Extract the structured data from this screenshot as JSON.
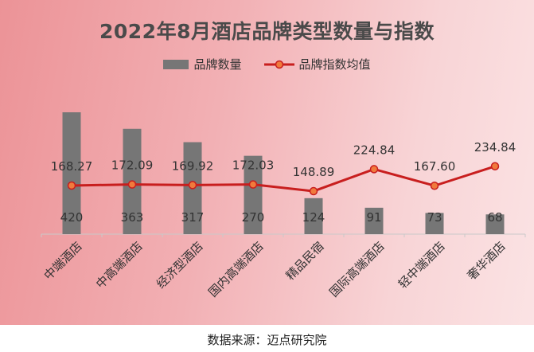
{
  "chart_data": {
    "type": "bar",
    "title": "2022年8月酒店品牌类型数量与指数",
    "categories": [
      "中端酒店",
      "中高端酒店",
      "经济型酒店",
      "国内高端酒店",
      "精品民宿",
      "国际高端酒店",
      "轻中端酒店",
      "奢华酒店"
    ],
    "series": [
      {
        "name": "品牌数量",
        "type": "bar",
        "values": [
          420,
          363,
          317,
          270,
          124,
          91,
          73,
          68
        ],
        "color": "#767676"
      },
      {
        "name": "品牌指数均值",
        "type": "line",
        "values": [
          168.27,
          172.09,
          169.92,
          172.03,
          148.89,
          224.84,
          167.6,
          234.84
        ],
        "value_labels": [
          "168.27",
          "172.09",
          "169.92",
          "172.03",
          "148.89",
          "224.84",
          "167.60",
          "234.84"
        ],
        "color": "#c81e1e",
        "marker_color": "#f07a3c"
      }
    ],
    "legend_position": "top",
    "grid": false
  },
  "source_text": "数据来源：迈点研究院"
}
